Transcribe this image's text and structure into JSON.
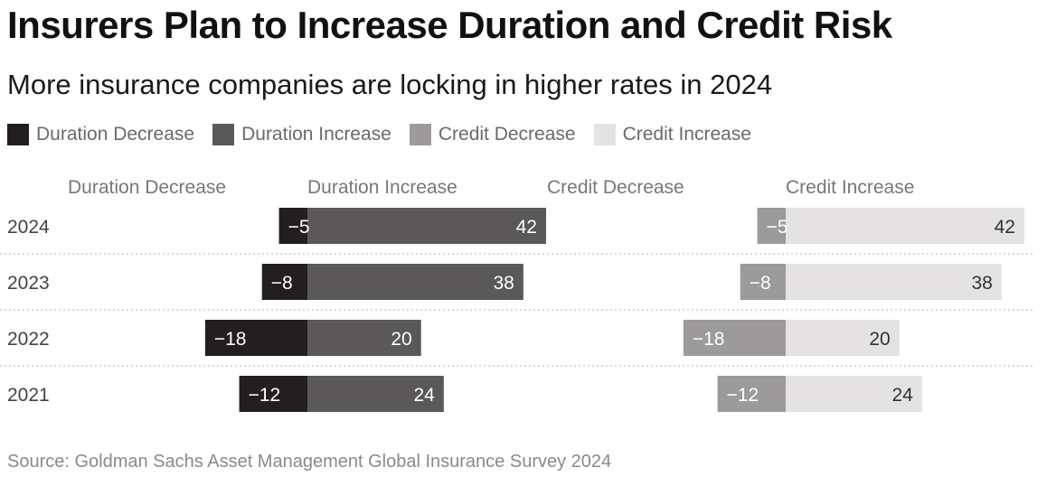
{
  "title": "Insurers Plan to Increase Duration and Credit Risk",
  "subtitle": "More insurance companies are locking in higher rates in 2024",
  "source": "Source: Goldman Sachs Asset Management Global Insurance Survey 2024",
  "colors": {
    "duration_decrease": "#231f20",
    "duration_increase": "#5a5859",
    "credit_decrease": "#9c9a9b",
    "credit_increase": "#e4e2e3",
    "gridline": "#cccccc"
  },
  "chart_data": {
    "type": "bar",
    "orientation": "horizontal-diverging",
    "categories": [
      "2024",
      "2023",
      "2022",
      "2021"
    ],
    "legend": {
      "placement": "top-left",
      "entries": [
        "Duration Decrease",
        "Duration Increase",
        "Credit Decrease",
        "Credit Increase"
      ]
    },
    "panels": [
      {
        "name": "Duration",
        "decrease_label": "Duration Decrease",
        "increase_label": "Duration Increase",
        "decrease_values": [
          -5,
          -8,
          -18,
          -12
        ],
        "increase_values": [
          42,
          38,
          20,
          24
        ],
        "decrease_labels": [
          "−5",
          "−8",
          "−18",
          "−12"
        ],
        "increase_labels": [
          "42",
          "38",
          "20",
          "24"
        ]
      },
      {
        "name": "Credit",
        "decrease_label": "Credit Decrease",
        "increase_label": "Credit Increase",
        "decrease_values": [
          -5,
          -8,
          -18,
          -12
        ],
        "increase_values": [
          42,
          38,
          20,
          24
        ],
        "decrease_labels": [
          "−5",
          "−8",
          "−18",
          "−12"
        ],
        "increase_labels": [
          "42",
          "38",
          "20",
          "24"
        ]
      }
    ],
    "grid": "dotted row separators"
  }
}
